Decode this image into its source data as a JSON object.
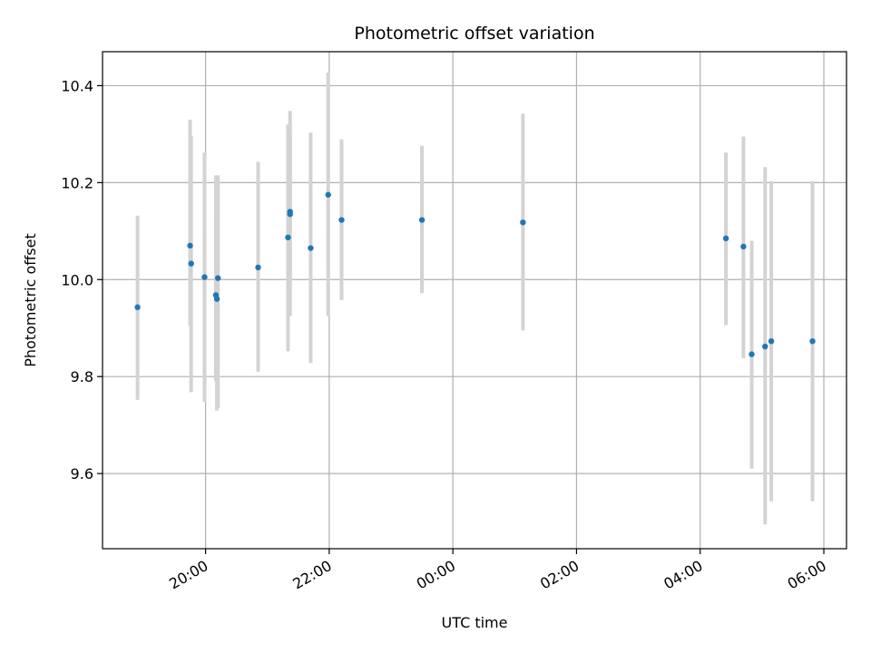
{
  "chart_data": {
    "type": "scatter",
    "title": "Photometric offset variation",
    "xlabel": "UTC time",
    "ylabel": "Photometric offset",
    "x_axis": {
      "kind": "time",
      "unit": "hours",
      "range": [
        "18:20",
        "06:22"
      ],
      "tick_values": [
        "20:00",
        "22:00",
        "00:00",
        "02:00",
        "04:00",
        "06:00"
      ],
      "tick_labels": [
        "20:00",
        "22:00",
        "00:00",
        "02:00",
        "04:00",
        "06:00"
      ],
      "tick_label_rotation": 30
    },
    "y_axis": {
      "range": [
        9.445,
        10.47
      ],
      "ticks": [
        9.6,
        9.8,
        10.0,
        10.2,
        10.4
      ],
      "tick_labels": [
        "9.6",
        "9.8",
        "10.0",
        "10.2",
        "10.4"
      ]
    },
    "grid": true,
    "marker_color": "#1f77b4",
    "errorbar_color": "#d3d3d3",
    "points": [
      {
        "x": "18:54",
        "y": 9.943,
        "ylow": 9.752,
        "yhigh": 10.132
      },
      {
        "x": "19:45",
        "y": 10.07,
        "ylow": 9.905,
        "yhigh": 10.33
      },
      {
        "x": "19:46",
        "y": 10.033,
        "ylow": 9.768,
        "yhigh": 10.296
      },
      {
        "x": "19:59",
        "y": 10.005,
        "ylow": 9.748,
        "yhigh": 10.262
      },
      {
        "x": "20:10",
        "y": 9.968,
        "ylow": 9.79,
        "yhigh": 10.215
      },
      {
        "x": "20:11",
        "y": 9.96,
        "ylow": 9.73,
        "yhigh": 10.135
      },
      {
        "x": "20:12",
        "y": 10.003,
        "ylow": 9.735,
        "yhigh": 10.215
      },
      {
        "x": "20:51",
        "y": 10.025,
        "ylow": 9.81,
        "yhigh": 10.243
      },
      {
        "x": "21:20",
        "y": 10.087,
        "ylow": 9.852,
        "yhigh": 10.32
      },
      {
        "x": "21:22",
        "y": 10.135,
        "ylow": 9.925,
        "yhigh": 10.348
      },
      {
        "x": "21:22",
        "y": 10.14,
        "ylow": 10.0,
        "yhigh": 10.3
      },
      {
        "x": "21:42",
        "y": 10.065,
        "ylow": 9.828,
        "yhigh": 10.303
      },
      {
        "x": "21:59",
        "y": 10.175,
        "ylow": 9.925,
        "yhigh": 10.427
      },
      {
        "x": "22:12",
        "y": 10.123,
        "ylow": 9.958,
        "yhigh": 10.289
      },
      {
        "x": "23:30",
        "y": 10.123,
        "ylow": 9.972,
        "yhigh": 10.276
      },
      {
        "x": "01:08",
        "y": 10.118,
        "ylow": 9.895,
        "yhigh": 10.342
      },
      {
        "x": "04:25",
        "y": 10.085,
        "ylow": 9.906,
        "yhigh": 10.262
      },
      {
        "x": "04:42",
        "y": 10.068,
        "ylow": 9.838,
        "yhigh": 10.295
      },
      {
        "x": "04:50",
        "y": 9.846,
        "ylow": 9.61,
        "yhigh": 10.08
      },
      {
        "x": "05:03",
        "y": 9.862,
        "ylow": 9.495,
        "yhigh": 10.232
      },
      {
        "x": "05:09",
        "y": 9.873,
        "ylow": 9.543,
        "yhigh": 10.203
      },
      {
        "x": "05:49",
        "y": 9.873,
        "ylow": 9.543,
        "yhigh": 10.203
      }
    ]
  }
}
